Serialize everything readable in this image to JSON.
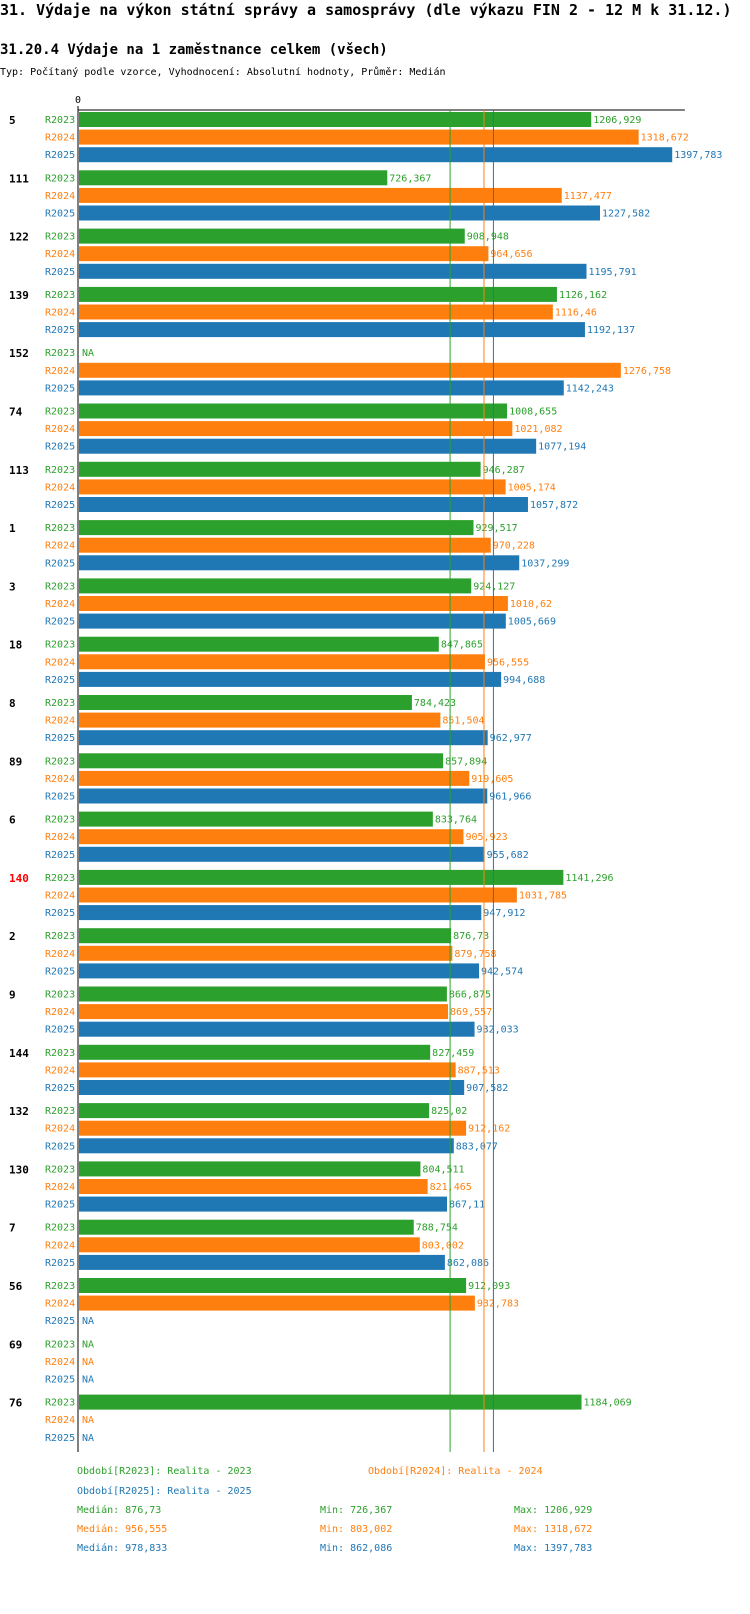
{
  "header": {
    "title": "31. Výdaje na výkon státní správy a samosprávy (dle výkazu FIN 2 - 12 M k 31.12.)",
    "subtitle": "31.20.4 Výdaje na 1 zaměstnance celkem (všech)",
    "description": "Typ: Počítaný podle vzorce, Vyhodnocení: Absolutní hodnoty, Průměr: Medián"
  },
  "colors": {
    "R2023": "#2ca02c",
    "R2024": "#ff7f0e",
    "R2025": "#1f77b4",
    "highlight": "#ff0000"
  },
  "chart_data": {
    "type": "bar",
    "orientation": "horizontal",
    "axis_zero_label": "0",
    "xlim": [
      0,
      1430
    ],
    "series_names": [
      "R2023",
      "R2024",
      "R2025"
    ],
    "groups": [
      {
        "label": "5",
        "highlight": false,
        "values": [
          1206.929,
          1318.672,
          1397.783
        ],
        "labels": [
          "1206,929",
          "1318,672",
          "1397,783"
        ]
      },
      {
        "label": "111",
        "highlight": false,
        "values": [
          726.367,
          1137.477,
          1227.582
        ],
        "labels": [
          "726,367",
          "1137,477",
          "1227,582"
        ]
      },
      {
        "label": "122",
        "highlight": false,
        "values": [
          908.948,
          964.656,
          1195.791
        ],
        "labels": [
          "908,948",
          "964,656",
          "1195,791"
        ]
      },
      {
        "label": "139",
        "highlight": false,
        "values": [
          1126.162,
          1116.46,
          1192.137
        ],
        "labels": [
          "1126,162",
          "1116,46",
          "1192,137"
        ]
      },
      {
        "label": "152",
        "highlight": false,
        "values": [
          null,
          1276.758,
          1142.243
        ],
        "labels": [
          "NA",
          "1276,758",
          "1142,243"
        ]
      },
      {
        "label": "74",
        "highlight": false,
        "values": [
          1008.655,
          1021.082,
          1077.194
        ],
        "labels": [
          "1008,655",
          "1021,082",
          "1077,194"
        ]
      },
      {
        "label": "113",
        "highlight": false,
        "values": [
          946.287,
          1005.174,
          1057.872
        ],
        "labels": [
          "946,287",
          "1005,174",
          "1057,872"
        ]
      },
      {
        "label": "1",
        "highlight": false,
        "values": [
          929.517,
          970.228,
          1037.299
        ],
        "labels": [
          "929,517",
          "970,228",
          "1037,299"
        ]
      },
      {
        "label": "3",
        "highlight": false,
        "values": [
          924.127,
          1010.62,
          1005.669
        ],
        "labels": [
          "924,127",
          "1010,62",
          "1005,669"
        ]
      },
      {
        "label": "18",
        "highlight": false,
        "values": [
          847.865,
          956.555,
          994.688
        ],
        "labels": [
          "847,865",
          "956,555",
          "994,688"
        ]
      },
      {
        "label": "8",
        "highlight": false,
        "values": [
          784.423,
          851.504,
          962.977
        ],
        "labels": [
          "784,423",
          "851,504",
          "962,977"
        ]
      },
      {
        "label": "89",
        "highlight": false,
        "values": [
          857.894,
          919.605,
          961.966
        ],
        "labels": [
          "857,894",
          "919,605",
          "961,966"
        ]
      },
      {
        "label": "6",
        "highlight": false,
        "values": [
          833.764,
          905.923,
          955.682
        ],
        "labels": [
          "833,764",
          "905,923",
          "955,682"
        ]
      },
      {
        "label": "140",
        "highlight": true,
        "values": [
          1141.296,
          1031.785,
          947.912
        ],
        "labels": [
          "1141,296",
          "1031,785",
          "947,912"
        ]
      },
      {
        "label": "2",
        "highlight": false,
        "values": [
          876.73,
          879.758,
          942.574
        ],
        "labels": [
          "876,73",
          "879,758",
          "942,574"
        ]
      },
      {
        "label": "9",
        "highlight": false,
        "values": [
          866.875,
          869.557,
          932.033
        ],
        "labels": [
          "866,875",
          "869,557",
          "932,033"
        ]
      },
      {
        "label": "144",
        "highlight": false,
        "values": [
          827.459,
          887.513,
          907.582
        ],
        "labels": [
          "827,459",
          "887,513",
          "907,582"
        ]
      },
      {
        "label": "132",
        "highlight": false,
        "values": [
          825.02,
          912.162,
          883.077
        ],
        "labels": [
          "825,02",
          "912,162",
          "883,077"
        ]
      },
      {
        "label": "130",
        "highlight": false,
        "values": [
          804.511,
          821.465,
          867.11
        ],
        "labels": [
          "804,511",
          "821,465",
          "867,11"
        ]
      },
      {
        "label": "7",
        "highlight": false,
        "values": [
          788.754,
          803.002,
          862.086
        ],
        "labels": [
          "788,754",
          "803,002",
          "862,086"
        ]
      },
      {
        "label": "56",
        "highlight": false,
        "values": [
          912.093,
          932.783,
          null
        ],
        "labels": [
          "912,093",
          "932,783",
          "NA"
        ]
      },
      {
        "label": "69",
        "highlight": false,
        "values": [
          null,
          null,
          null
        ],
        "labels": [
          "NA",
          "NA",
          "NA"
        ]
      },
      {
        "label": "76",
        "highlight": false,
        "values": [
          1184.069,
          null,
          null
        ],
        "labels": [
          "1184,069",
          "NA",
          "NA"
        ]
      }
    ],
    "median_lines": [
      876.73,
      956.555,
      978.833
    ]
  },
  "legend": {
    "r2023": "Období[R2023]: Realita - 2023",
    "r2024": "Období[R2024]: Realita - 2024",
    "r2025": "Období[R2025]: Realita - 2025"
  },
  "stats": [
    {
      "median": "Medián: 876,73",
      "min": "Min: 726,367",
      "max": "Max: 1206,929"
    },
    {
      "median": "Medián: 956,555",
      "min": "Min: 803,002",
      "max": "Max: 1318,672"
    },
    {
      "median": "Medián: 978,833",
      "min": "Min: 862,086",
      "max": "Max: 1397,783"
    }
  ]
}
